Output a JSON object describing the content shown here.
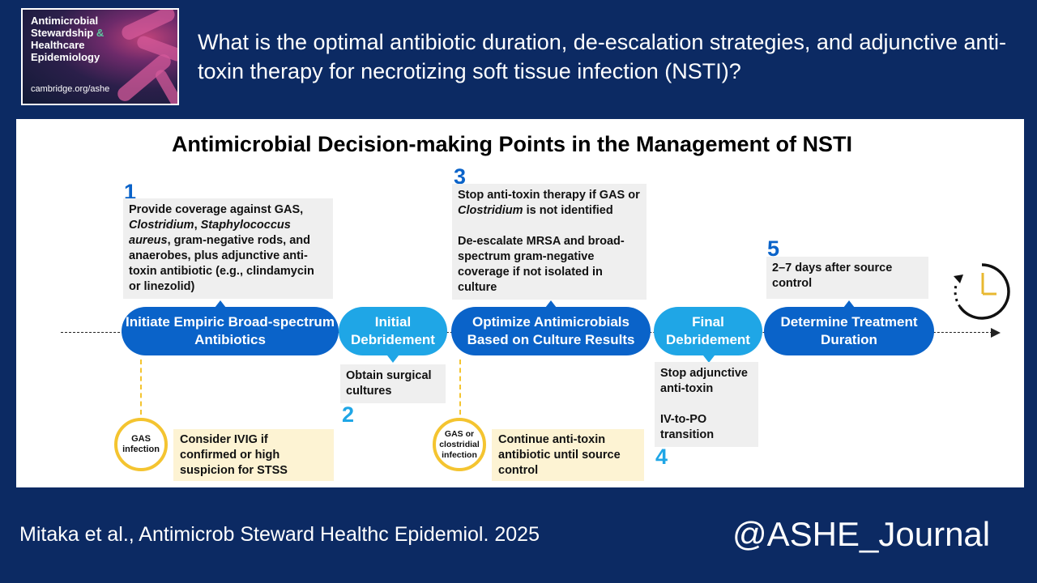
{
  "logo": {
    "lines": [
      "Antimicrobial",
      "Stewardship",
      "&",
      "Healthcare",
      "Epidemiology"
    ],
    "url": "cambridge.org/ashe"
  },
  "question": "What is the optimal antibiotic duration, de-escalation strategies, and adjunctive anti-toxin therapy for necrotizing soft tissue infection (NSTI)?",
  "diagram": {
    "title": "Antimicrobial Decision-making Points in the Management of NSTI",
    "stages": [
      {
        "label": "Initiate Empiric Broad-spectrum Antibiotics"
      },
      {
        "label": "Initial Debridement"
      },
      {
        "label": "Optimize Antimicrobials Based on Culture Results"
      },
      {
        "label": "Final Debridement"
      },
      {
        "label": "Determine Treatment Duration"
      }
    ],
    "steps": [
      {
        "number": "1",
        "parts": [
          "Provide coverage against GAS, ",
          "Clostridium",
          ", ",
          "Staphylococcus aureus",
          ", gram-negative rods, and anaerobes, plus adjunctive anti-toxin antibiotic (e.g., clindamycin or linezolid)"
        ]
      },
      {
        "number": "2",
        "text": "Obtain surgical cultures"
      },
      {
        "number": "3",
        "p1_parts": [
          "Stop anti-toxin therapy if GAS or ",
          "Clostridium",
          " is not identified"
        ],
        "p2": "De-escalate MRSA and broad-spectrum gram-negative coverage if not isolated in culture"
      },
      {
        "number": "4",
        "p1": "Stop adjunctive anti-toxin",
        "p2": "IV-to-PO transition"
      },
      {
        "number": "5",
        "text": "2–7 days after source control"
      }
    ],
    "conditions": [
      {
        "circle": "GAS infection",
        "note": "Consider IVIG if confirmed or high suspicion for STSS"
      },
      {
        "circle": "GAS or clostridial infection",
        "note": "Continue anti-toxin antibiotic until source control"
      }
    ],
    "colors": {
      "dark_blue": "#0a63c9",
      "light_blue": "#1fa6e6",
      "yellow": "#f4c430",
      "note_gray": "#efefef",
      "note_yellow": "#fdf3d3"
    }
  },
  "footer": {
    "citation": "Mitaka et al., Antimicrob Steward Healthc Epidemiol. 2025",
    "handle": "@ASHE_Journal"
  },
  "icons": {
    "clock": "clock-icon"
  }
}
